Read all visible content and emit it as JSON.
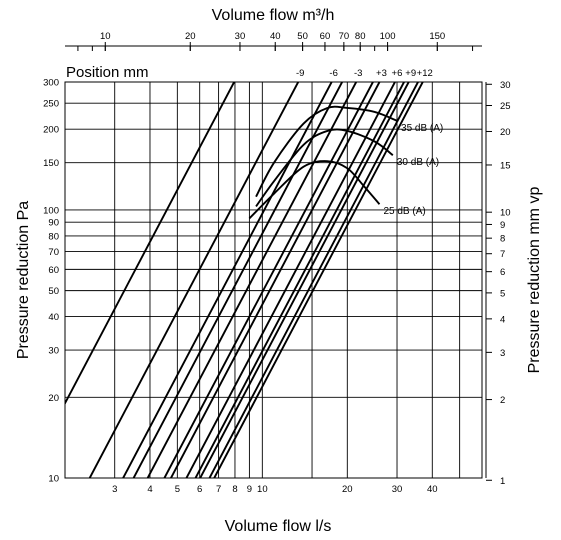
{
  "chart_data": {
    "type": "line",
    "scale": "log-log",
    "top_axis": {
      "title": "Volume flow m³/h",
      "ticks": [
        10,
        20,
        30,
        40,
        50,
        60,
        70,
        80,
        100,
        150
      ],
      "tick_labels": [
        "10",
        "20",
        "30",
        "40",
        "50",
        "60",
        "70",
        "80",
        "100",
        "150"
      ]
    },
    "bottom_axis": {
      "title": "Volume flow l/s",
      "range": [
        2,
        60
      ],
      "ticks": [
        3,
        4,
        5,
        6,
        7,
        8,
        9,
        10,
        20,
        30,
        40
      ],
      "tick_labels": [
        "3",
        "4",
        "5",
        "6",
        "7",
        "8",
        "9",
        "10",
        "20",
        "30",
        "40"
      ]
    },
    "left_axis": {
      "title": "Pressure reduction Pa",
      "range": [
        10,
        300
      ],
      "ticks": [
        10,
        20,
        30,
        40,
        50,
        60,
        70,
        80,
        90,
        100,
        150,
        200,
        250,
        300
      ],
      "tick_labels": [
        "10",
        "20",
        "30",
        "40",
        "50",
        "60",
        "70",
        "80",
        "90",
        "100",
        "150",
        "200",
        "250",
        "300"
      ]
    },
    "right_axis": {
      "title": "Pressure reduction mm vp",
      "ticks": [
        1,
        2,
        3,
        4,
        5,
        6,
        7,
        8,
        9,
        10,
        15,
        20,
        25,
        30
      ],
      "tick_labels": [
        "1",
        "2",
        "3",
        "4",
        "5",
        "6",
        "7",
        "8",
        "9",
        "10",
        "15",
        "20",
        "25",
        "30"
      ]
    },
    "position_title": "Position mm",
    "positions": [
      {
        "label": "-9",
        "q_at_300": 13.4
      },
      {
        "label": "-6",
        "q_at_300": 17.6
      },
      {
        "label": "-3",
        "q_at_300": 21.5
      },
      {
        "label": "+3",
        "q_at_300": 26.0
      },
      {
        "label": "+6",
        "q_at_300": 29.5
      },
      {
        "label": "+9",
        "q_at_300": 33.0
      },
      {
        "label": "+12",
        "q_at_300": 37.0
      }
    ],
    "extra_line_q_at_10": [
      3.5,
      4.5,
      5.8,
      6.5
    ],
    "sound_curves": [
      {
        "label": "35 dB (A)",
        "points": [
          [
            9.5,
            112
          ],
          [
            11,
            150
          ],
          [
            14,
            210
          ],
          [
            17,
            240
          ],
          [
            20,
            240
          ],
          [
            25,
            232
          ],
          [
            30,
            215
          ]
        ]
      },
      {
        "label": "30 dB (A)",
        "points": [
          [
            9.5,
            103
          ],
          [
            11,
            128
          ],
          [
            14,
            175
          ],
          [
            17,
            197
          ],
          [
            20,
            197
          ],
          [
            25,
            180
          ],
          [
            29,
            160
          ]
        ]
      },
      {
        "label": "25 dB (A)",
        "points": [
          [
            9.0,
            93
          ],
          [
            11,
            115
          ],
          [
            14,
            145
          ],
          [
            17,
            152
          ],
          [
            20,
            143
          ],
          [
            23,
            122
          ],
          [
            26,
            105
          ]
        ]
      }
    ],
    "grid": true,
    "legend": "none"
  }
}
